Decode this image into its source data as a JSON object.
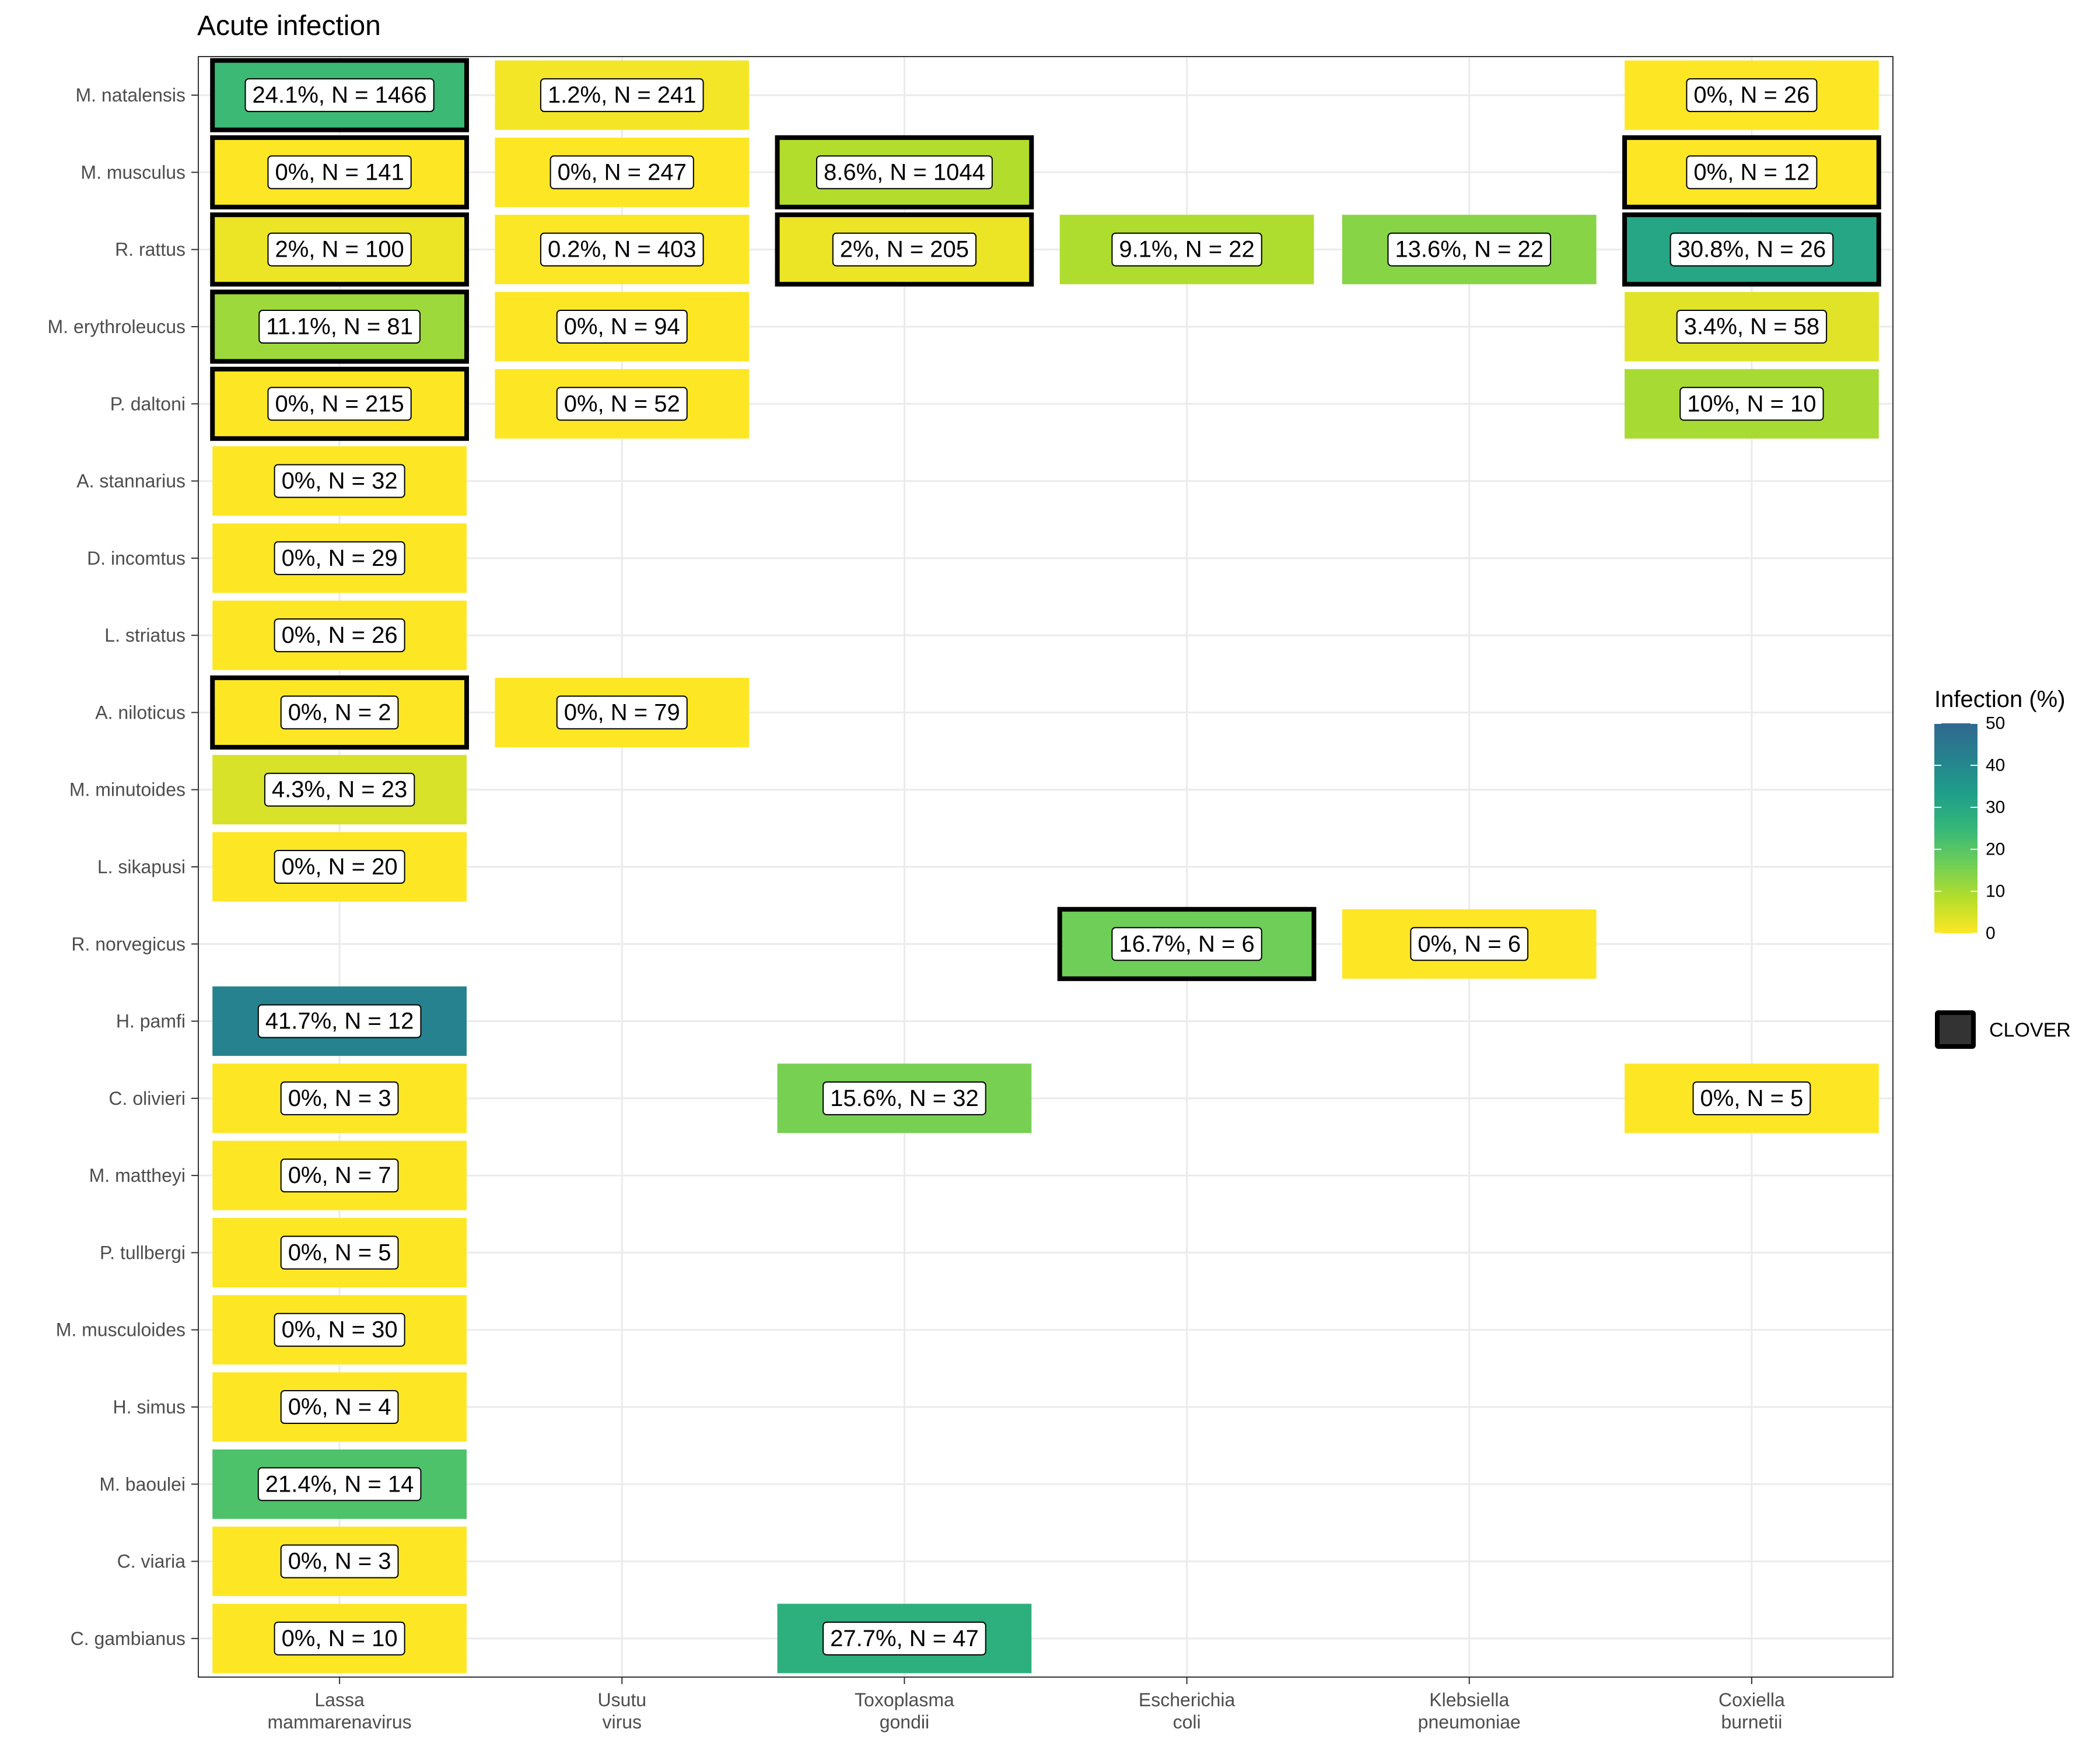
{
  "chart_data": {
    "type": "heatmap",
    "title": "Acute infection",
    "x_categories": [
      [
        "Lassa",
        "mammarenavirus"
      ],
      [
        "Usutu",
        "virus"
      ],
      [
        "Toxoplasma",
        "gondii"
      ],
      [
        "Escherichia",
        "coli"
      ],
      [
        "Klebsiella",
        "pneumoniae"
      ],
      [
        "Coxiella",
        "burnetii"
      ]
    ],
    "y_categories": [
      "M. natalensis",
      "M. musculus",
      "R. rattus",
      "M. erythroleucus",
      "P. daltoni",
      "A. stannarius",
      "D. incomtus",
      "L. striatus",
      "A. niloticus",
      "M. minutoides",
      "L. sikapusi",
      "R. norvegicus",
      "H. pamfi",
      "C. olivieri",
      "M. mattheyi",
      "P. tullbergi",
      "M. musculoides",
      "H. simus",
      "M. baoulei",
      "C. viaria",
      "C. gambianus"
    ],
    "cells": [
      {
        "y": 0,
        "x": 0,
        "value": 24.1,
        "n": 1466,
        "label": "24.1%, N = 1466",
        "clover": true
      },
      {
        "y": 0,
        "x": 1,
        "value": 1.2,
        "n": 241,
        "label": "1.2%, N = 241",
        "clover": false
      },
      {
        "y": 0,
        "x": 5,
        "value": 0,
        "n": 26,
        "label": "0%, N = 26",
        "clover": false
      },
      {
        "y": 1,
        "x": 0,
        "value": 0,
        "n": 141,
        "label": "0%, N = 141",
        "clover": true
      },
      {
        "y": 1,
        "x": 1,
        "value": 0,
        "n": 247,
        "label": "0%, N = 247",
        "clover": false
      },
      {
        "y": 1,
        "x": 2,
        "value": 8.6,
        "n": 1044,
        "label": "8.6%, N = 1044",
        "clover": true
      },
      {
        "y": 1,
        "x": 5,
        "value": 0,
        "n": 12,
        "label": "0%, N = 12",
        "clover": true
      },
      {
        "y": 2,
        "x": 0,
        "value": 2,
        "n": 100,
        "label": "2%, N = 100",
        "clover": true
      },
      {
        "y": 2,
        "x": 1,
        "value": 0.2,
        "n": 403,
        "label": "0.2%, N = 403",
        "clover": false
      },
      {
        "y": 2,
        "x": 2,
        "value": 2,
        "n": 205,
        "label": "2%, N = 205",
        "clover": true
      },
      {
        "y": 2,
        "x": 3,
        "value": 9.1,
        "n": 22,
        "label": "9.1%, N = 22",
        "clover": false
      },
      {
        "y": 2,
        "x": 4,
        "value": 13.6,
        "n": 22,
        "label": "13.6%, N = 22",
        "clover": false
      },
      {
        "y": 2,
        "x": 5,
        "value": 30.8,
        "n": 26,
        "label": "30.8%, N = 26",
        "clover": true
      },
      {
        "y": 3,
        "x": 0,
        "value": 11.1,
        "n": 81,
        "label": "11.1%, N = 81",
        "clover": true
      },
      {
        "y": 3,
        "x": 1,
        "value": 0,
        "n": 94,
        "label": "0%, N = 94",
        "clover": false
      },
      {
        "y": 3,
        "x": 5,
        "value": 3.4,
        "n": 58,
        "label": "3.4%, N = 58",
        "clover": false
      },
      {
        "y": 4,
        "x": 0,
        "value": 0,
        "n": 215,
        "label": "0%, N = 215",
        "clover": true
      },
      {
        "y": 4,
        "x": 1,
        "value": 0,
        "n": 52,
        "label": "0%, N = 52",
        "clover": false
      },
      {
        "y": 4,
        "x": 5,
        "value": 10,
        "n": 10,
        "label": "10%, N = 10",
        "clover": false
      },
      {
        "y": 5,
        "x": 0,
        "value": 0,
        "n": 32,
        "label": "0%, N = 32",
        "clover": false
      },
      {
        "y": 6,
        "x": 0,
        "value": 0,
        "n": 29,
        "label": "0%, N = 29",
        "clover": false
      },
      {
        "y": 7,
        "x": 0,
        "value": 0,
        "n": 26,
        "label": "0%, N = 26",
        "clover": false
      },
      {
        "y": 8,
        "x": 0,
        "value": 0,
        "n": 2,
        "label": "0%, N = 2",
        "clover": true
      },
      {
        "y": 8,
        "x": 1,
        "value": 0,
        "n": 79,
        "label": "0%, N = 79",
        "clover": false
      },
      {
        "y": 9,
        "x": 0,
        "value": 4.3,
        "n": 23,
        "label": "4.3%, N = 23",
        "clover": false
      },
      {
        "y": 10,
        "x": 0,
        "value": 0,
        "n": 20,
        "label": "0%, N = 20",
        "clover": false
      },
      {
        "y": 11,
        "x": 3,
        "value": 16.7,
        "n": 6,
        "label": "16.7%, N = 6",
        "clover": true
      },
      {
        "y": 11,
        "x": 4,
        "value": 0,
        "n": 6,
        "label": "0%, N = 6",
        "clover": false
      },
      {
        "y": 12,
        "x": 0,
        "value": 41.7,
        "n": 12,
        "label": "41.7%, N = 12",
        "clover": false
      },
      {
        "y": 13,
        "x": 0,
        "value": 0,
        "n": 3,
        "label": "0%, N = 3",
        "clover": false
      },
      {
        "y": 13,
        "x": 2,
        "value": 15.6,
        "n": 32,
        "label": "15.6%, N = 32",
        "clover": false
      },
      {
        "y": 13,
        "x": 5,
        "value": 0,
        "n": 5,
        "label": "0%, N = 5",
        "clover": false
      },
      {
        "y": 14,
        "x": 0,
        "value": 0,
        "n": 7,
        "label": "0%, N = 7",
        "clover": false
      },
      {
        "y": 15,
        "x": 0,
        "value": 0,
        "n": 5,
        "label": "0%, N = 5",
        "clover": false
      },
      {
        "y": 16,
        "x": 0,
        "value": 0,
        "n": 30,
        "label": "0%, N = 30",
        "clover": false
      },
      {
        "y": 17,
        "x": 0,
        "value": 0,
        "n": 4,
        "label": "0%, N = 4",
        "clover": false
      },
      {
        "y": 18,
        "x": 0,
        "value": 21.4,
        "n": 14,
        "label": "21.4%, N = 14",
        "clover": false
      },
      {
        "y": 19,
        "x": 0,
        "value": 0,
        "n": 3,
        "label": "0%, N = 3",
        "clover": false
      },
      {
        "y": 20,
        "x": 0,
        "value": 0,
        "n": 10,
        "label": "0%, N = 10",
        "clover": false
      },
      {
        "y": 20,
        "x": 2,
        "value": 27.7,
        "n": 47,
        "label": "27.7%, N = 47",
        "clover": false
      }
    ],
    "color_scale": {
      "name": "viridis",
      "domain": [
        0,
        50
      ],
      "stops": [
        "#fde725",
        "#b5de2b",
        "#6ece58",
        "#35b779",
        "#1f9e89",
        "#26828e",
        "#31688e"
      ]
    },
    "legend": {
      "title": "Infection (%)",
      "ticks": [
        0,
        10,
        20,
        30,
        40,
        50
      ],
      "outline_label": "CLOVER",
      "placement": "right"
    },
    "grid": true
  }
}
